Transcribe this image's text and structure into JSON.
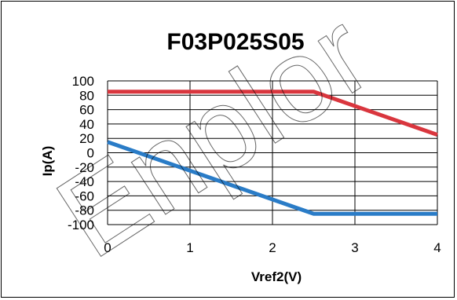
{
  "chart_data": {
    "type": "line",
    "title": "F03P025S05",
    "xlabel": "Vref2(V)",
    "ylabel": "Ip(A)",
    "xlim": [
      0,
      4
    ],
    "ylim": [
      -100,
      100
    ],
    "x_ticks": [
      "0",
      "1",
      "2",
      "3",
      "4"
    ],
    "y_ticks": [
      "100",
      "80",
      "60",
      "40",
      "20",
      "0",
      "-20",
      "-40",
      "-60",
      "-80",
      "-100"
    ],
    "grid": true,
    "series": [
      {
        "color": "#d9363e",
        "points": [
          [
            0,
            85
          ],
          [
            2.5,
            85
          ],
          [
            4,
            25
          ]
        ]
      },
      {
        "color": "#2a7cc7",
        "points": [
          [
            0,
            15
          ],
          [
            2.5,
            -85
          ],
          [
            4,
            -85
          ]
        ]
      }
    ]
  },
  "watermark": "Enplor"
}
